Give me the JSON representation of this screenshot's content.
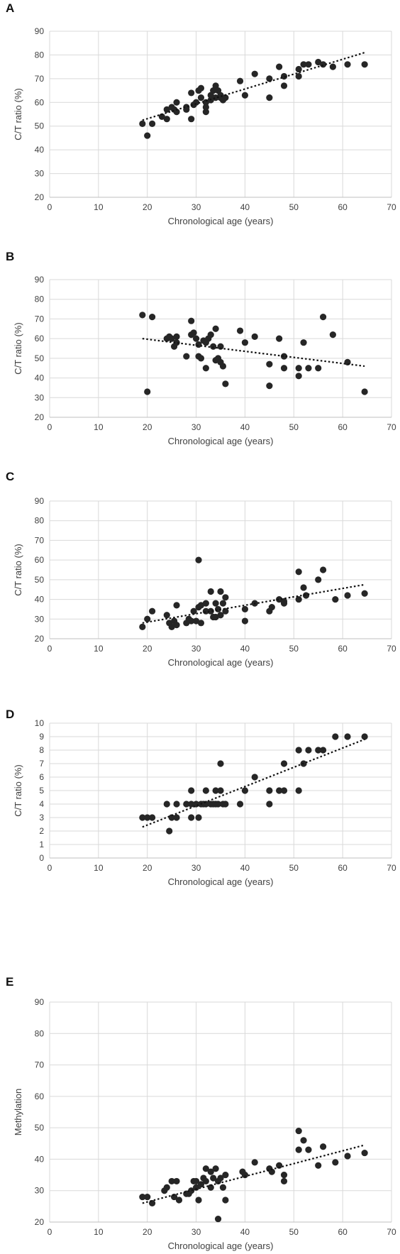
{
  "chart_data": [
    {
      "panel": "A",
      "type": "scatter",
      "xlabel": "Chronological age (years)",
      "ylabel": "C/T ratio (%)",
      "xlim": [
        0,
        70
      ],
      "ylim": [
        20,
        90
      ],
      "xticks": [
        0,
        10,
        20,
        30,
        40,
        50,
        60,
        70
      ],
      "yticks": [
        20,
        30,
        40,
        50,
        60,
        70,
        80,
        90
      ],
      "trendline": {
        "x": [
          19,
          64.5
        ],
        "y": [
          52.5,
          81
        ]
      },
      "points": [
        [
          19,
          51
        ],
        [
          20,
          46
        ],
        [
          21,
          51
        ],
        [
          23,
          54
        ],
        [
          24,
          57
        ],
        [
          24,
          53
        ],
        [
          25,
          58
        ],
        [
          25.5,
          57
        ],
        [
          26,
          60
        ],
        [
          26,
          56
        ],
        [
          28,
          57
        ],
        [
          28,
          58
        ],
        [
          29,
          64
        ],
        [
          29,
          53
        ],
        [
          29.5,
          59
        ],
        [
          30,
          60
        ],
        [
          30.5,
          65
        ],
        [
          31,
          66
        ],
        [
          31,
          62
        ],
        [
          32,
          58
        ],
        [
          32,
          56
        ],
        [
          32,
          60
        ],
        [
          33,
          63
        ],
        [
          33,
          61
        ],
        [
          33.5,
          65
        ],
        [
          34,
          67
        ],
        [
          34,
          62
        ],
        [
          34.5,
          65
        ],
        [
          35,
          63
        ],
        [
          35,
          62
        ],
        [
          35.5,
          61
        ],
        [
          36,
          62
        ],
        [
          39,
          69
        ],
        [
          40,
          63
        ],
        [
          42,
          72
        ],
        [
          45,
          70
        ],
        [
          45,
          62
        ],
        [
          47,
          75
        ],
        [
          48,
          71
        ],
        [
          48,
          67
        ],
        [
          51,
          71
        ],
        [
          51,
          74
        ],
        [
          52,
          76
        ],
        [
          53,
          76
        ],
        [
          55,
          77
        ],
        [
          56,
          76
        ],
        [
          58,
          75
        ],
        [
          61,
          76
        ],
        [
          64.5,
          76
        ]
      ]
    },
    {
      "panel": "B",
      "type": "scatter",
      "xlabel": "Chronological age (years)",
      "ylabel": "C/T ratio (%)",
      "xlim": [
        0,
        70
      ],
      "ylim": [
        20,
        90
      ],
      "xticks": [
        0,
        10,
        20,
        30,
        40,
        50,
        60,
        70
      ],
      "yticks": [
        20,
        30,
        40,
        50,
        60,
        70,
        80,
        90
      ],
      "trendline": {
        "x": [
          19,
          64.5
        ],
        "y": [
          60,
          46
        ]
      },
      "points": [
        [
          19,
          72
        ],
        [
          20,
          33
        ],
        [
          21,
          71
        ],
        [
          24,
          60
        ],
        [
          24.5,
          61
        ],
        [
          25,
          60
        ],
        [
          25.5,
          56
        ],
        [
          26,
          58
        ],
        [
          26,
          61
        ],
        [
          28,
          51
        ],
        [
          29,
          69
        ],
        [
          29,
          62
        ],
        [
          29.5,
          63
        ],
        [
          30,
          60
        ],
        [
          30.5,
          57
        ],
        [
          30.5,
          51
        ],
        [
          31,
          50
        ],
        [
          31.5,
          59
        ],
        [
          32,
          45
        ],
        [
          32,
          58
        ],
        [
          32.5,
          60
        ],
        [
          33,
          62
        ],
        [
          33.5,
          56
        ],
        [
          34,
          65
        ],
        [
          34,
          49
        ],
        [
          34.5,
          50
        ],
        [
          35,
          48
        ],
        [
          35.5,
          46
        ],
        [
          35,
          56
        ],
        [
          36,
          37
        ],
        [
          39,
          64
        ],
        [
          40,
          58
        ],
        [
          42,
          61
        ],
        [
          45,
          47
        ],
        [
          45,
          36
        ],
        [
          47,
          60
        ],
        [
          48,
          45
        ],
        [
          48,
          51
        ],
        [
          51,
          41
        ],
        [
          51,
          45
        ],
        [
          52,
          58
        ],
        [
          53,
          45
        ],
        [
          55,
          45
        ],
        [
          56,
          71
        ],
        [
          58,
          62
        ],
        [
          61,
          48
        ],
        [
          64.5,
          33
        ]
      ]
    },
    {
      "panel": "C",
      "type": "scatter",
      "xlabel": "Chronological age (years)",
      "ylabel": "C/T ratio (%)",
      "xlim": [
        0,
        70
      ],
      "ylim": [
        20,
        90
      ],
      "xticks": [
        0,
        10,
        20,
        30,
        40,
        50,
        60,
        70
      ],
      "yticks": [
        20,
        30,
        40,
        50,
        60,
        70,
        80,
        90
      ],
      "trendline": {
        "x": [
          19,
          64.5
        ],
        "y": [
          28,
          47.5
        ]
      },
      "points": [
        [
          19,
          26
        ],
        [
          20,
          30
        ],
        [
          21,
          34
        ],
        [
          24,
          32
        ],
        [
          24.5,
          28
        ],
        [
          25,
          26
        ],
        [
          25.5,
          29
        ],
        [
          26,
          37
        ],
        [
          26,
          27
        ],
        [
          28,
          28
        ],
        [
          28.5,
          30
        ],
        [
          29,
          29
        ],
        [
          29.5,
          34
        ],
        [
          30,
          29
        ],
        [
          30.5,
          60
        ],
        [
          30.5,
          36
        ],
        [
          31,
          37
        ],
        [
          31,
          28
        ],
        [
          32,
          38
        ],
        [
          32,
          34
        ],
        [
          33,
          44
        ],
        [
          33,
          34
        ],
        [
          33.5,
          31
        ],
        [
          34,
          38
        ],
        [
          34,
          31
        ],
        [
          34.5,
          35
        ],
        [
          35,
          44
        ],
        [
          35.5,
          38
        ],
        [
          35,
          32
        ],
        [
          36,
          41
        ],
        [
          36,
          34
        ],
        [
          40,
          35
        ],
        [
          40,
          29
        ],
        [
          42,
          38
        ],
        [
          45,
          34
        ],
        [
          45.5,
          36
        ],
        [
          47,
          40
        ],
        [
          48,
          39
        ],
        [
          48,
          38
        ],
        [
          51,
          54
        ],
        [
          51,
          40
        ],
        [
          52,
          46
        ],
        [
          52.5,
          42
        ],
        [
          55,
          50
        ],
        [
          56,
          55
        ],
        [
          58.5,
          40
        ],
        [
          61,
          42
        ],
        [
          64.5,
          43
        ]
      ]
    },
    {
      "panel": "D",
      "type": "scatter",
      "xlabel": "Chronological age (years)",
      "ylabel": "C/T ratio (%)",
      "xlim": [
        0,
        70
      ],
      "ylim": [
        0,
        10
      ],
      "xticks": [
        0,
        10,
        20,
        30,
        40,
        50,
        60,
        70
      ],
      "yticks": [
        0,
        1,
        2,
        3,
        4,
        5,
        6,
        7,
        8,
        9,
        10
      ],
      "trendline": {
        "x": [
          19,
          64.5
        ],
        "y": [
          2.3,
          8.8
        ]
      },
      "points": [
        [
          19,
          3
        ],
        [
          20,
          3
        ],
        [
          21,
          3
        ],
        [
          24,
          4
        ],
        [
          24.5,
          2
        ],
        [
          25,
          3
        ],
        [
          26,
          3
        ],
        [
          26,
          4
        ],
        [
          28,
          4
        ],
        [
          29,
          4
        ],
        [
          29,
          5
        ],
        [
          29,
          3
        ],
        [
          30,
          4
        ],
        [
          30.5,
          3
        ],
        [
          31,
          4
        ],
        [
          31.5,
          4
        ],
        [
          32,
          4
        ],
        [
          32,
          5
        ],
        [
          33,
          4
        ],
        [
          33.5,
          4
        ],
        [
          34,
          4
        ],
        [
          34,
          5
        ],
        [
          34.5,
          4
        ],
        [
          35,
          5
        ],
        [
          35,
          7
        ],
        [
          35.5,
          4
        ],
        [
          36,
          4
        ],
        [
          39,
          4
        ],
        [
          40,
          5
        ],
        [
          42,
          6
        ],
        [
          45,
          5
        ],
        [
          45,
          4
        ],
        [
          47,
          5
        ],
        [
          48,
          7
        ],
        [
          48,
          5
        ],
        [
          51,
          8
        ],
        [
          51,
          5
        ],
        [
          52,
          7
        ],
        [
          53,
          8
        ],
        [
          55,
          8
        ],
        [
          56,
          8
        ],
        [
          58.5,
          9
        ],
        [
          61,
          9
        ],
        [
          64.5,
          9
        ]
      ]
    },
    {
      "panel": "E",
      "type": "scatter",
      "xlabel": "Chronological age (years)",
      "ylabel": "Methylation",
      "xlim": [
        0,
        70
      ],
      "ylim": [
        20,
        90
      ],
      "xticks": [
        0,
        10,
        20,
        30,
        40,
        50,
        60,
        70
      ],
      "yticks": [
        20,
        30,
        40,
        50,
        60,
        70,
        80,
        90
      ],
      "trendline": {
        "x": [
          19,
          64.5
        ],
        "y": [
          26,
          44.5
        ]
      },
      "points": [
        [
          19,
          28
        ],
        [
          20,
          28
        ],
        [
          21,
          26
        ],
        [
          23.5,
          30
        ],
        [
          24,
          31
        ],
        [
          25,
          33
        ],
        [
          25.5,
          28
        ],
        [
          26,
          33
        ],
        [
          26.5,
          27
        ],
        [
          28,
          29
        ],
        [
          28.5,
          29
        ],
        [
          29,
          30
        ],
        [
          29.5,
          33
        ],
        [
          30,
          31
        ],
        [
          30,
          33
        ],
        [
          30.5,
          27
        ],
        [
          31,
          32
        ],
        [
          31.5,
          34
        ],
        [
          32,
          37
        ],
        [
          32,
          33
        ],
        [
          33,
          36
        ],
        [
          33,
          31
        ],
        [
          33.5,
          34
        ],
        [
          34,
          37
        ],
        [
          34.5,
          33
        ],
        [
          34.5,
          21
        ],
        [
          35,
          34
        ],
        [
          35.5,
          31
        ],
        [
          36,
          35
        ],
        [
          36,
          27
        ],
        [
          39.5,
          36
        ],
        [
          40,
          35
        ],
        [
          42,
          39
        ],
        [
          45,
          37
        ],
        [
          45.5,
          36
        ],
        [
          47,
          38
        ],
        [
          48,
          35
        ],
        [
          48,
          33
        ],
        [
          51,
          49
        ],
        [
          51,
          43
        ],
        [
          52,
          46
        ],
        [
          53,
          43
        ],
        [
          55,
          38
        ],
        [
          56,
          44
        ],
        [
          58.5,
          39
        ],
        [
          61,
          41
        ],
        [
          64.5,
          42
        ]
      ]
    }
  ]
}
